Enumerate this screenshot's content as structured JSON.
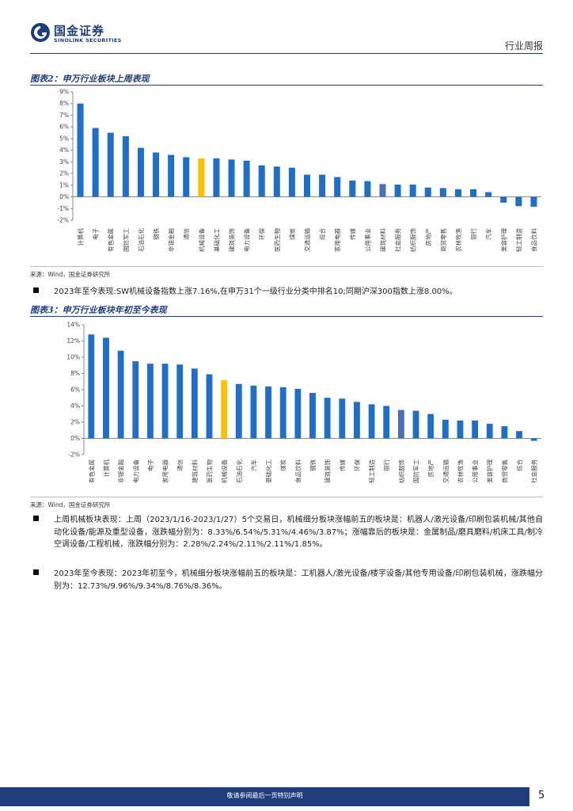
{
  "header": {
    "logo_cn": "国金证券",
    "logo_en": "SINOLINK SECURITIES",
    "report_type": "行业周报"
  },
  "figure2": {
    "title": "图表2：申万行业板块上周表现",
    "source": "来源：Wind，国金证券研究所"
  },
  "figure3": {
    "title": "图表3：申万行业板块年初至今表现",
    "source": "来源：Wind，国金证券研究所"
  },
  "summary_bullet": "2023年至今表现:SW机械设备指数上涨7.16%,在申万31个一级行业分类中排名10;同期沪深300指数上涨8.00%。",
  "bullets": [
    "上周机械板块表现：上周（2023/1/16-2023/1/27）5个交易日，机械细分板块涨幅前五的板块是：机器人/激光设备/印刷包装机械/其他自动化设备/能源及重型设备，涨跌幅分别为：8.33%/6.54%/5.31%/4.46%/3.87%；涨幅靠后的板块是：金属制品/磨具磨料/机床工具/制冷空调设备/工程机械，涨跌幅分别为：2.28%/2.24%/2.11%/2.11%/1.85%。",
    "2023年至今表现：2023年初至今，机械细分板块涨幅前五的板块是：工机器人/激光设备/楼宇设备/其他专用设备/印刷包装机械，涨跌幅分别为：12.73%/9.96%/9.34%/8.76%/8.36%。"
  ],
  "footer": {
    "disclaimer": "敬请参阅最后一页特别声明",
    "page": "5"
  },
  "colors": {
    "brand": "#1f3d7a",
    "bar_default": "#1f6fc8",
    "bar_highlight": "#ffc000",
    "bar_alt": "#4a6fbf"
  },
  "chart_data": [
    {
      "type": "bar",
      "title": "图表2：申万行业板块上周表现",
      "categories": [
        "计算机",
        "电子",
        "有色金属",
        "国防军工",
        "石油石化",
        "钢铁",
        "非银金融",
        "通信",
        "机械设备",
        "基础化工",
        "建筑装饰",
        "电力设备",
        "环保",
        "医药生物",
        "煤炭",
        "交通运输",
        "综合",
        "家用电器",
        "传媒",
        "公用事业",
        "建筑材料",
        "社会服务",
        "纺织服饰",
        "房地产",
        "商贸零售",
        "农林牧渔",
        "银行",
        "汽车",
        "美容护理",
        "轻工制造",
        "食品饮料"
      ],
      "values": [
        8.0,
        5.9,
        5.5,
        5.2,
        4.2,
        3.8,
        3.6,
        3.4,
        3.3,
        3.3,
        3.2,
        3.1,
        2.7,
        2.6,
        2.5,
        1.9,
        1.9,
        1.7,
        1.4,
        1.35,
        1.1,
        1.05,
        1.05,
        0.8,
        0.75,
        0.65,
        0.65,
        0.4,
        -0.5,
        -0.8,
        -0.85
      ],
      "highlight": [
        8
      ],
      "alt_color": [
        20
      ],
      "yticks": [
        "9%",
        "8%",
        "7%",
        "6%",
        "5%",
        "4%",
        "3%",
        "2%",
        "1%",
        "0%",
        "-1%",
        "-2%"
      ],
      "ylim": [
        -2,
        9
      ]
    },
    {
      "type": "bar",
      "title": "图表3：申万行业板块年初至今表现",
      "categories": [
        "有色金属",
        "计算机",
        "非银金融",
        "电力设备",
        "电子",
        "家用电器",
        "通信",
        "建筑材料",
        "医药生物",
        "机械设备",
        "石油石化",
        "汽车",
        "基础化工",
        "煤炭",
        "食品饮料",
        "钢铁",
        "建筑装饰",
        "传媒",
        "环保",
        "轻工制造",
        "银行",
        "纺织服饰",
        "国防军工",
        "房地产",
        "交通运输",
        "农林牧渔",
        "公用事业",
        "美容护理",
        "商贸零售",
        "综合",
        "社会服务"
      ],
      "values": [
        12.8,
        12.4,
        10.8,
        9.5,
        9.2,
        9.2,
        9.1,
        8.6,
        7.9,
        7.16,
        6.7,
        6.5,
        6.4,
        6.3,
        6.1,
        5.6,
        5.0,
        4.9,
        4.5,
        4.2,
        4.0,
        3.5,
        3.4,
        3.0,
        2.3,
        2.2,
        2.2,
        1.8,
        1.5,
        0.9,
        -0.3
      ],
      "highlight": [
        9
      ],
      "alt_color": [
        21
      ],
      "yticks": [
        "14%",
        "12%",
        "10%",
        "8%",
        "6%",
        "4%",
        "2%",
        "0%",
        "-2%"
      ],
      "ylim": [
        -2,
        14
      ]
    }
  ]
}
